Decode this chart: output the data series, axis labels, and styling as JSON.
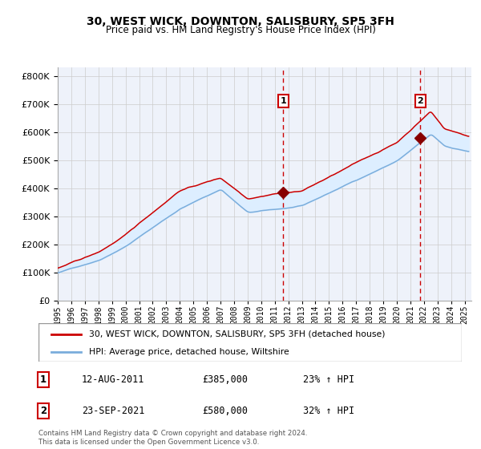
{
  "title": "30, WEST WICK, DOWNTON, SALISBURY, SP5 3FH",
  "subtitle": "Price paid vs. HM Land Registry's House Price Index (HPI)",
  "sale1_date": "12-AUG-2011",
  "sale1_price": 385000,
  "sale1_label": "23% ↑ HPI",
  "sale2_date": "23-SEP-2021",
  "sale2_price": 580000,
  "sale2_label": "32% ↑ HPI",
  "sale1_year": 2011.62,
  "sale2_year": 2021.73,
  "legend_property": "30, WEST WICK, DOWNTON, SALISBURY, SP5 3FH (detached house)",
  "legend_hpi": "HPI: Average price, detached house, Wiltshire",
  "footer": "Contains HM Land Registry data © Crown copyright and database right 2024.\nThis data is licensed under the Open Government Licence v3.0.",
  "property_color": "#cc0000",
  "hpi_color": "#7aaddc",
  "fill_color": "#ddeeff",
  "dashed_line_color": "#cc0000",
  "background_color": "#ffffff",
  "plot_bg_color": "#eef2fa",
  "ylim": [
    0,
    830000
  ],
  "xlim_start": 1995.0,
  "xlim_end": 2025.5
}
